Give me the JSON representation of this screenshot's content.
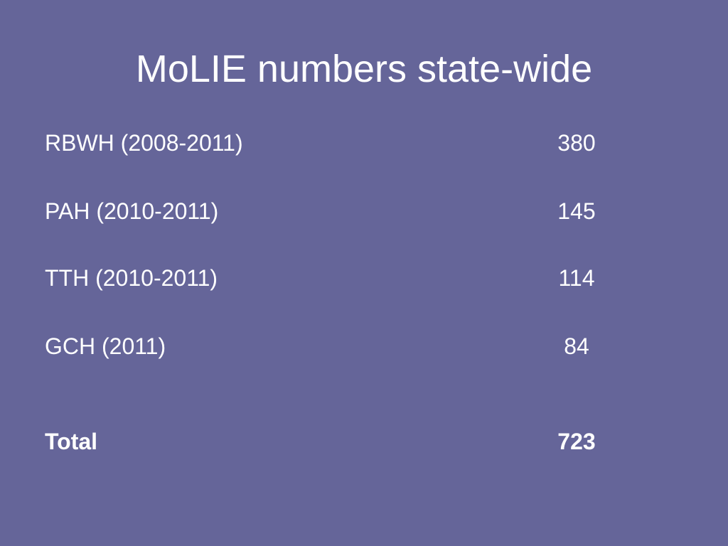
{
  "title": "MoLIE numbers state-wide",
  "table": {
    "rows": [
      [
        "RBWH (2008-2011)",
        380
      ],
      [
        "PAH (2010-2011)",
        145
      ],
      [
        "TTH (2010-2011)",
        114
      ],
      [
        "GCH (2011)",
        84
      ]
    ],
    "total": [
      "Total",
      723
    ]
  }
}
